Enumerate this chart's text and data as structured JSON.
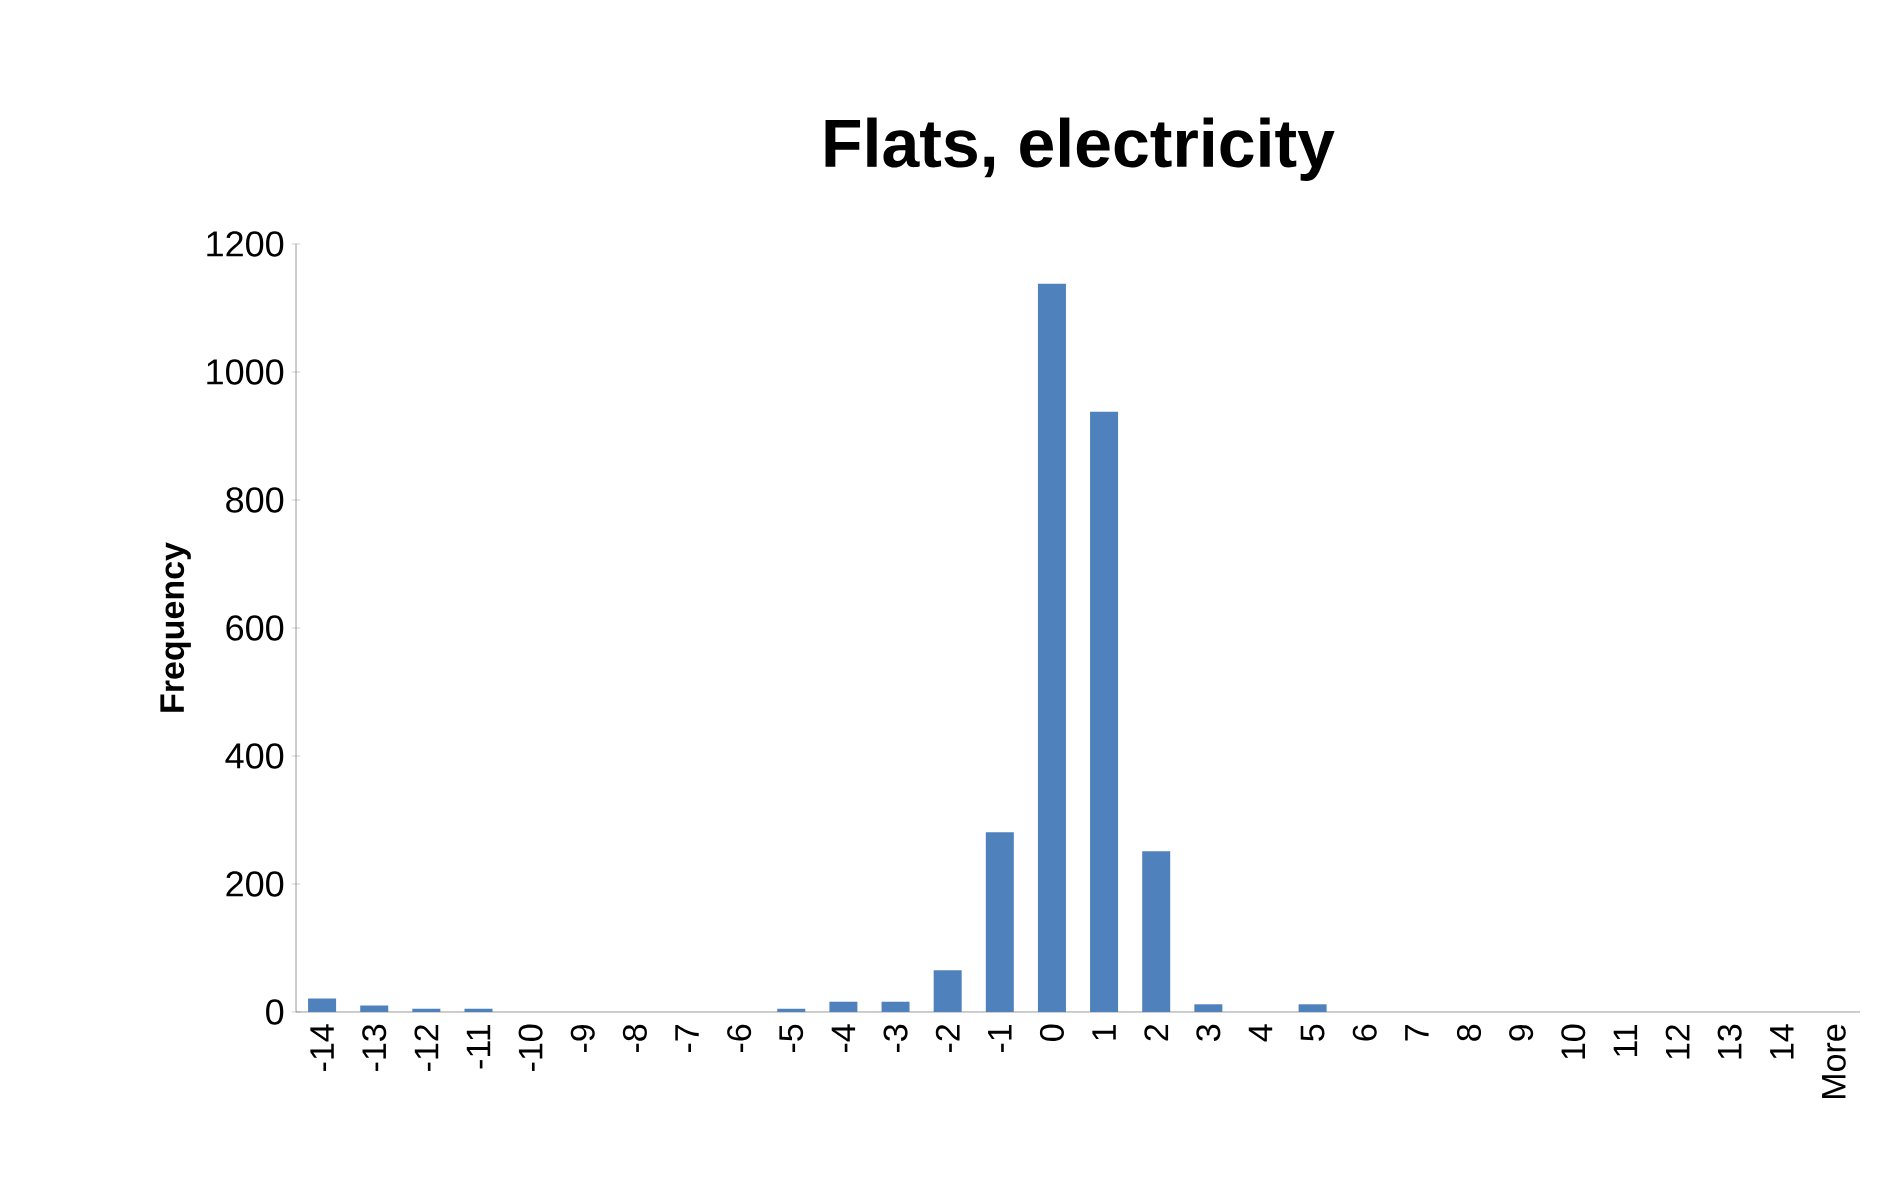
{
  "chart_data": {
    "type": "bar",
    "title": "Flats, electricity",
    "ylabel": "Frequency",
    "categories": [
      "-14",
      "-13",
      "-12",
      "-11",
      "-10",
      "-9",
      "-8",
      "-7",
      "-6",
      "-5",
      "-4",
      "-3",
      "-2",
      "-1",
      "0",
      "1",
      "2",
      "3",
      "4",
      "5",
      "6",
      "7",
      "8",
      "9",
      "10",
      "11",
      "12",
      "13",
      "14",
      "More"
    ],
    "values": [
      21,
      10,
      5,
      5,
      0,
      0,
      0,
      0,
      0,
      5,
      16,
      16,
      65,
      281,
      1138,
      938,
      251,
      12,
      0,
      12,
      0,
      0,
      0,
      0,
      0,
      0,
      0,
      0,
      0,
      0
    ],
    "color": "#4f81bd",
    "ylim": [
      0,
      1200
    ],
    "yticks": [
      0,
      200,
      400,
      600,
      800,
      1000,
      1200
    ],
    "grid": false
  }
}
